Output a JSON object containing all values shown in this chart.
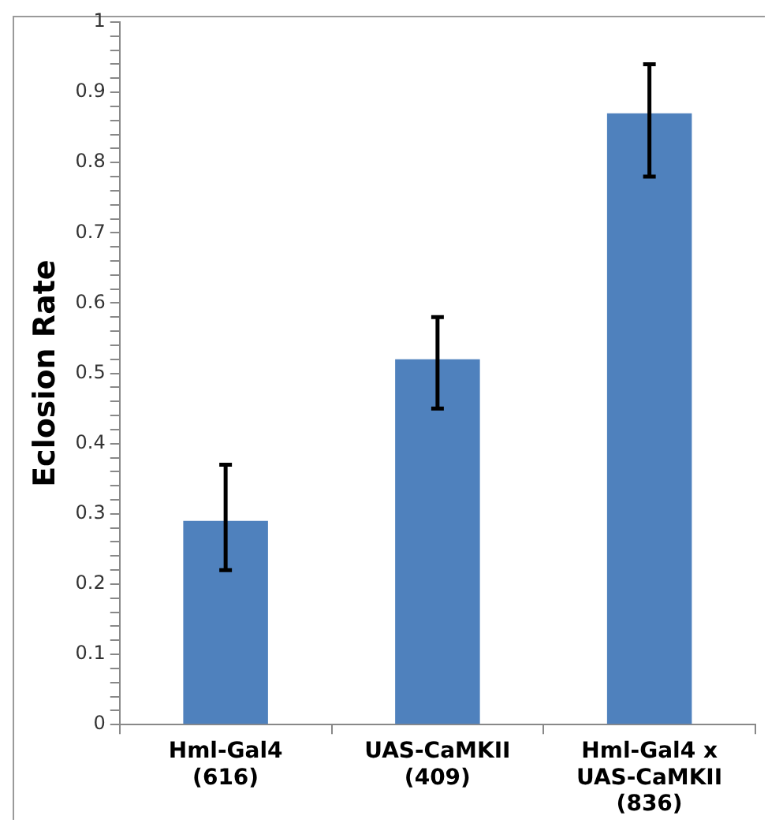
{
  "chart_data": {
    "type": "bar",
    "ylabel": "Eclosion Rate",
    "categories": [
      "Hml-Gal4 (616)",
      "UAS-CaMKII (409)",
      "Hml-Gal4 x UAS-CaMKII (836)"
    ],
    "values": [
      0.29,
      0.52,
      0.87
    ],
    "color": "#4f81bd",
    "errors": [
      [
        0.22,
        0.37
      ],
      [
        0.45,
        0.58
      ],
      [
        0.78,
        0.94
      ]
    ],
    "ylim": [
      0,
      1
    ],
    "yticks": [
      0,
      {
        "value": 0.02,
        "label": null
      },
      {
        "value": 0.04,
        "label": null
      },
      {
        "value": 0.06,
        "label": null
      },
      {
        "value": 0.08,
        "label": null
      },
      0.1,
      {
        "value": 0.12,
        "label": null
      },
      {
        "value": 0.14,
        "label": null
      },
      {
        "value": 0.16,
        "label": null
      },
      {
        "value": 0.18,
        "label": null
      },
      0.2,
      {
        "value": 0.22,
        "label": null
      },
      {
        "value": 0.24,
        "label": null
      },
      {
        "value": 0.26,
        "label": null
      },
      {
        "value": 0.28,
        "label": null
      },
      0.3,
      {
        "value": 0.32,
        "label": null
      },
      {
        "value": 0.34,
        "label": null
      },
      {
        "value": 0.36,
        "label": null
      },
      {
        "value": 0.38,
        "label": null
      },
      0.4,
      {
        "value": 0.42,
        "label": null
      },
      {
        "value": 0.44,
        "label": null
      },
      {
        "value": 0.46,
        "label": null
      },
      {
        "value": 0.48,
        "label": null
      },
      0.5,
      {
        "value": 0.52,
        "label": null
      },
      {
        "value": 0.54,
        "label": null
      },
      {
        "value": 0.56,
        "label": null
      },
      {
        "value": 0.58,
        "label": null
      },
      0.6,
      {
        "value": 0.62,
        "label": null
      },
      {
        "value": 0.64,
        "label": null
      },
      {
        "value": 0.66,
        "label": null
      },
      {
        "value": 0.68,
        "label": null
      },
      0.7,
      {
        "value": 0.72,
        "label": null
      },
      {
        "value": 0.74,
        "label": null
      },
      {
        "value": 0.76,
        "label": null
      },
      {
        "value": 0.78,
        "label": null
      },
      0.8,
      {
        "value": 0.82,
        "label": null
      },
      {
        "value": 0.84,
        "label": null
      },
      {
        "value": 0.86,
        "label": null
      },
      {
        "value": 0.88,
        "label": null
      },
      0.9,
      {
        "value": 0.92,
        "label": null
      },
      {
        "value": 0.94,
        "label": null
      },
      {
        "value": 0.96,
        "label": null
      },
      {
        "value": 0.98,
        "label": null
      },
      1
    ],
    "grid": false,
    "legend": false
  }
}
